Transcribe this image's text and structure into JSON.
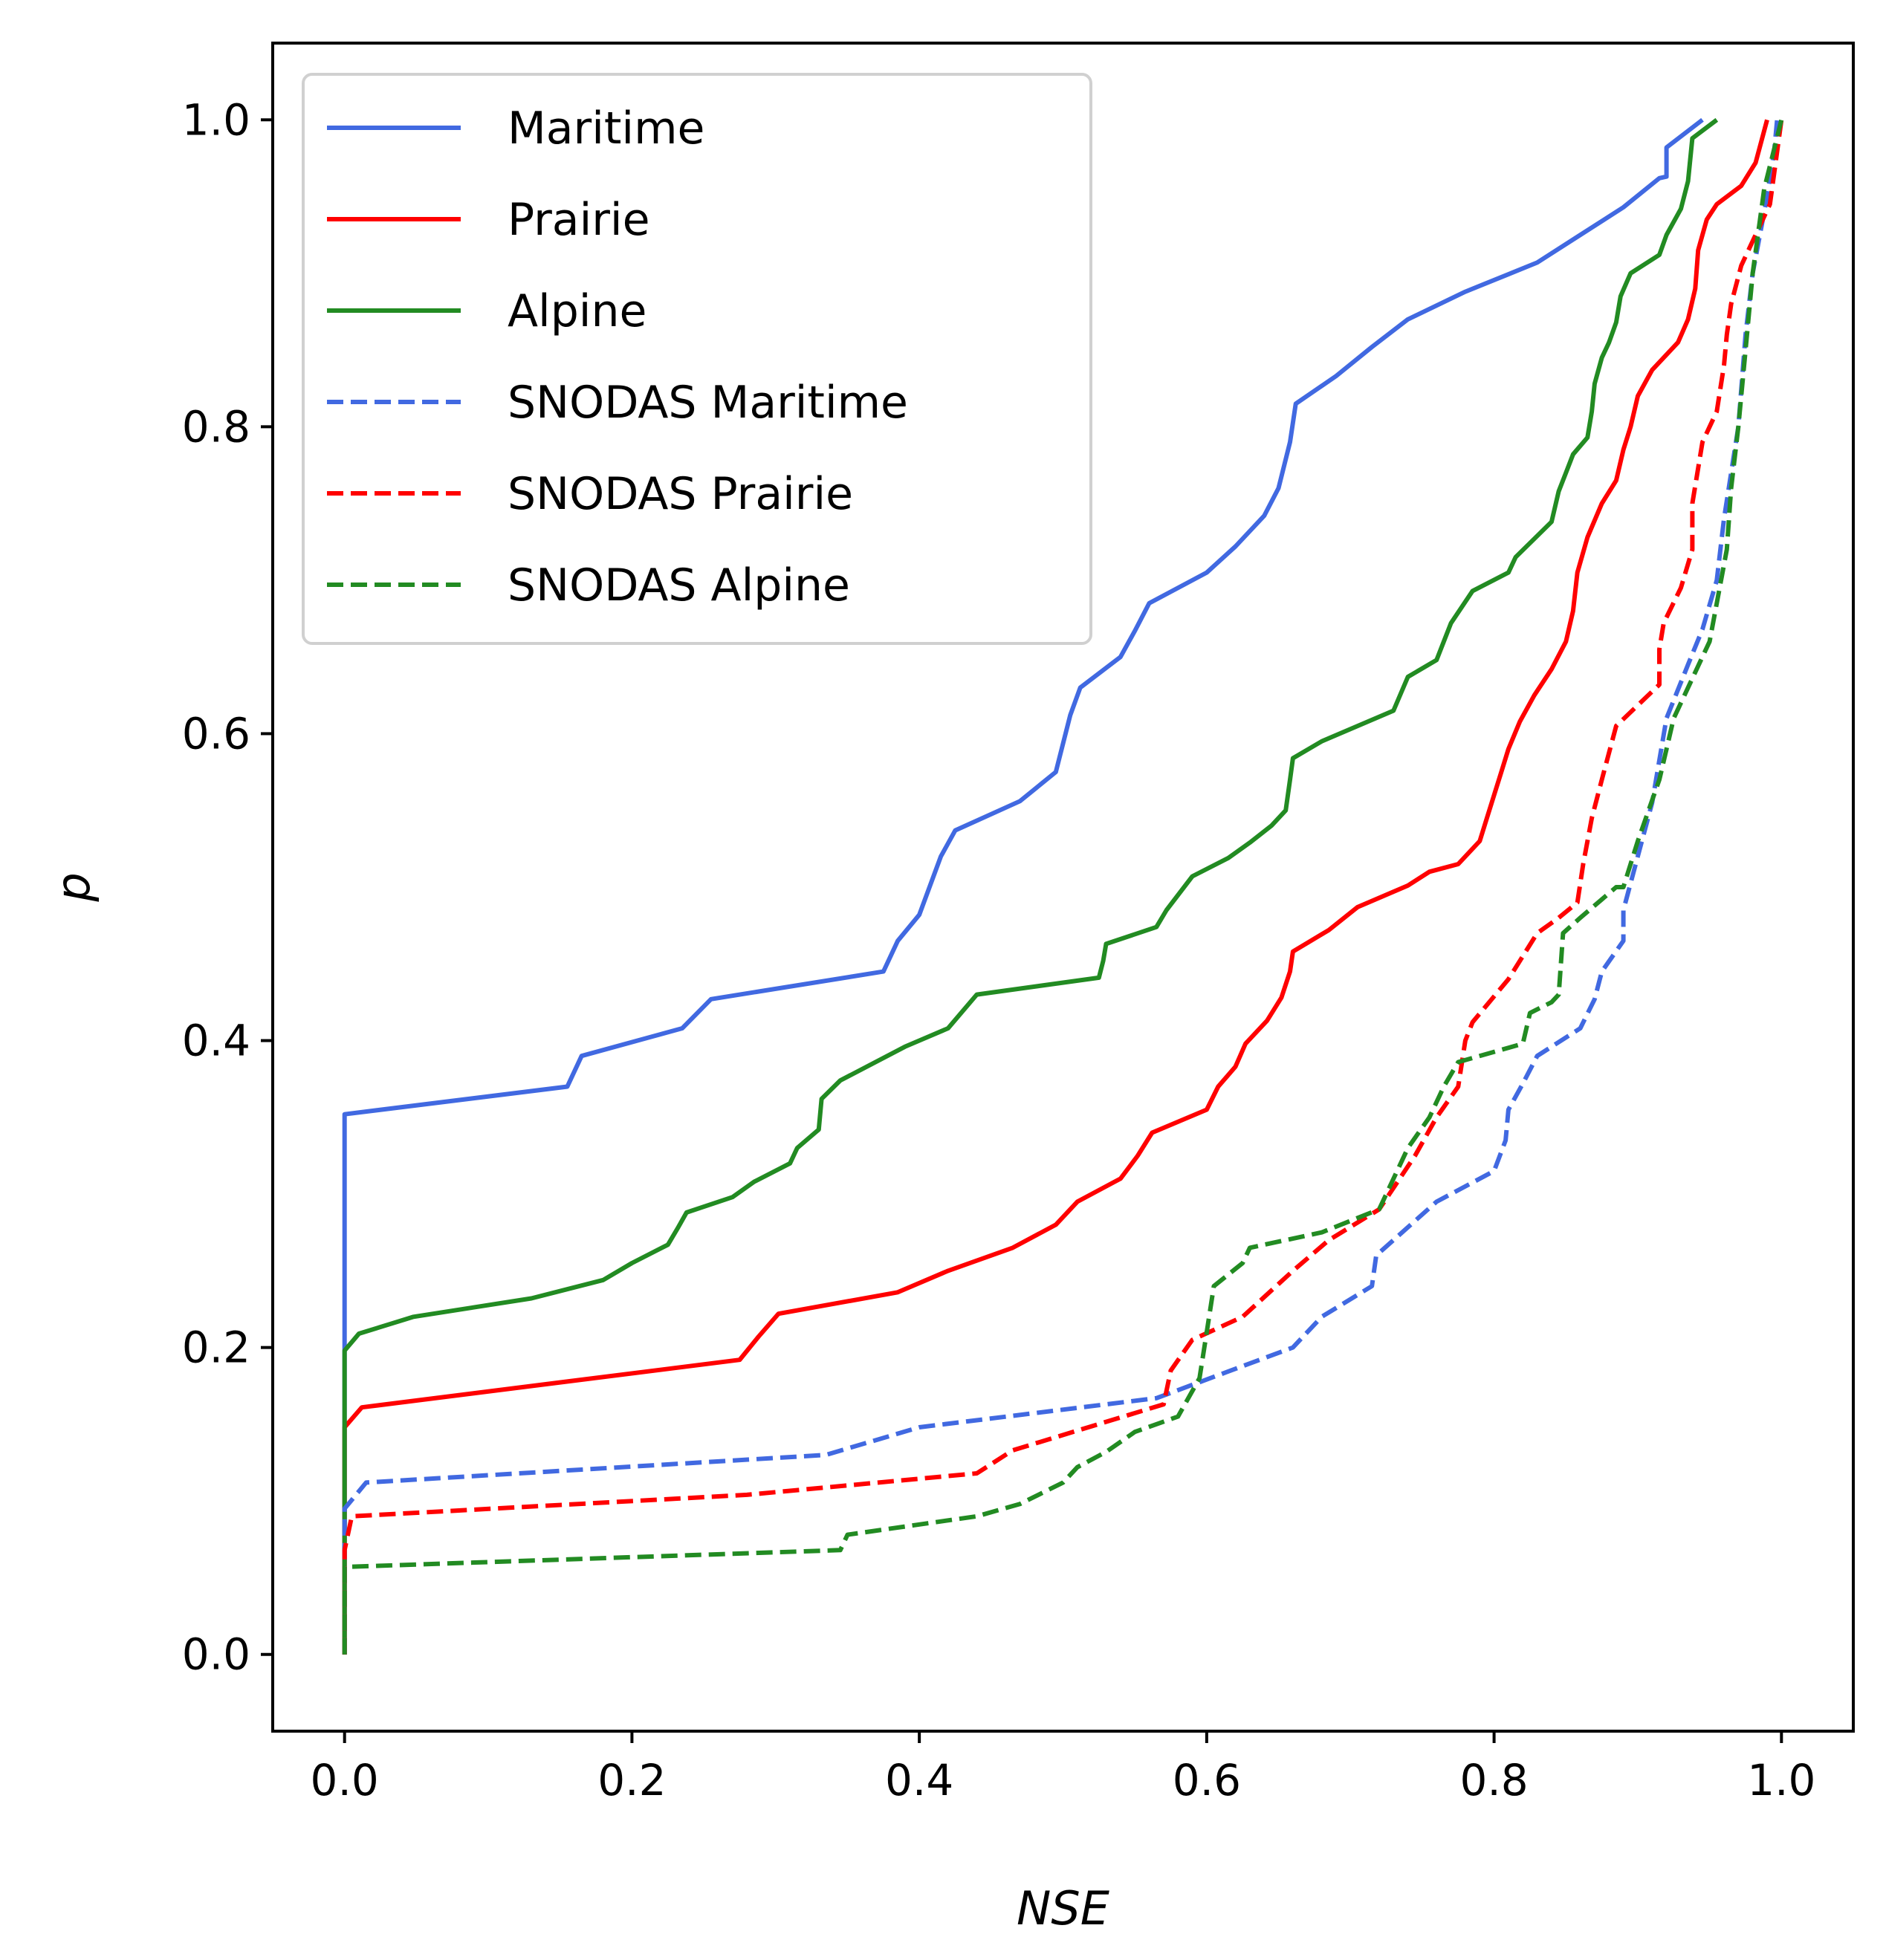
{
  "chart_data": {
    "type": "line",
    "xlabel": "NSE",
    "ylabel": "p",
    "xlim": [
      -0.05,
      1.05
    ],
    "ylim": [
      -0.05,
      1.05
    ],
    "xticks": [
      "0.0",
      "0.2",
      "0.4",
      "0.6",
      "0.8",
      "1.0"
    ],
    "yticks": [
      "0.0",
      "0.2",
      "0.4",
      "0.6",
      "0.8",
      "1.0"
    ],
    "grid": false,
    "legend_position": "top-left",
    "series": [
      {
        "name": "Maritime",
        "color": "#4169e1",
        "style": "solid",
        "points": [
          [
            0.0,
            0.0
          ],
          [
            0.0,
            0.352
          ],
          [
            0.155,
            0.37
          ],
          [
            0.165,
            0.39
          ],
          [
            0.235,
            0.408
          ],
          [
            0.255,
            0.427
          ],
          [
            0.375,
            0.445
          ],
          [
            0.385,
            0.465
          ],
          [
            0.4,
            0.482
          ],
          [
            0.415,
            0.52
          ],
          [
            0.425,
            0.537
          ],
          [
            0.47,
            0.556
          ],
          [
            0.495,
            0.575
          ],
          [
            0.505,
            0.612
          ],
          [
            0.512,
            0.63
          ],
          [
            0.54,
            0.65
          ],
          [
            0.55,
            0.667
          ],
          [
            0.56,
            0.685
          ],
          [
            0.6,
            0.705
          ],
          [
            0.62,
            0.722
          ],
          [
            0.64,
            0.742
          ],
          [
            0.65,
            0.76
          ],
          [
            0.658,
            0.79
          ],
          [
            0.662,
            0.815
          ],
          [
            0.69,
            0.833
          ],
          [
            0.715,
            0.852
          ],
          [
            0.74,
            0.87
          ],
          [
            0.78,
            0.888
          ],
          [
            0.83,
            0.907
          ],
          [
            0.86,
            0.925
          ],
          [
            0.89,
            0.943
          ],
          [
            0.915,
            0.962
          ],
          [
            0.92,
            0.963
          ],
          [
            0.92,
            0.982
          ],
          [
            0.945,
            1.0
          ]
        ]
      },
      {
        "name": "Prairie",
        "color": "#ff0000",
        "style": "solid",
        "points": [
          [
            0.0,
            0.0
          ],
          [
            0.0,
            0.148
          ],
          [
            0.012,
            0.161
          ],
          [
            0.275,
            0.192
          ],
          [
            0.288,
            0.207
          ],
          [
            0.302,
            0.222
          ],
          [
            0.385,
            0.236
          ],
          [
            0.42,
            0.25
          ],
          [
            0.465,
            0.265
          ],
          [
            0.495,
            0.28
          ],
          [
            0.51,
            0.295
          ],
          [
            0.54,
            0.31
          ],
          [
            0.552,
            0.325
          ],
          [
            0.562,
            0.34
          ],
          [
            0.6,
            0.355
          ],
          [
            0.608,
            0.37
          ],
          [
            0.62,
            0.383
          ],
          [
            0.627,
            0.398
          ],
          [
            0.642,
            0.413
          ],
          [
            0.652,
            0.428
          ],
          [
            0.658,
            0.445
          ],
          [
            0.66,
            0.458
          ],
          [
            0.685,
            0.472
          ],
          [
            0.705,
            0.487
          ],
          [
            0.74,
            0.501
          ],
          [
            0.755,
            0.51
          ],
          [
            0.775,
            0.515
          ],
          [
            0.79,
            0.53
          ],
          [
            0.795,
            0.545
          ],
          [
            0.8,
            0.56
          ],
          [
            0.805,
            0.575
          ],
          [
            0.81,
            0.59
          ],
          [
            0.818,
            0.608
          ],
          [
            0.828,
            0.625
          ],
          [
            0.84,
            0.642
          ],
          [
            0.85,
            0.66
          ],
          [
            0.855,
            0.68
          ],
          [
            0.858,
            0.705
          ],
          [
            0.865,
            0.728
          ],
          [
            0.875,
            0.75
          ],
          [
            0.885,
            0.765
          ],
          [
            0.89,
            0.785
          ],
          [
            0.895,
            0.8
          ],
          [
            0.9,
            0.82
          ],
          [
            0.91,
            0.837
          ],
          [
            0.928,
            0.855
          ],
          [
            0.935,
            0.87
          ],
          [
            0.94,
            0.89
          ],
          [
            0.942,
            0.915
          ],
          [
            0.948,
            0.935
          ],
          [
            0.955,
            0.945
          ],
          [
            0.972,
            0.957
          ],
          [
            0.982,
            0.972
          ],
          [
            0.99,
            1.0
          ]
        ]
      },
      {
        "name": "Alpine",
        "color": "#228b22",
        "style": "solid",
        "points": [
          [
            0.0,
            0.0
          ],
          [
            0.0,
            0.198
          ],
          [
            0.01,
            0.209
          ],
          [
            0.048,
            0.22
          ],
          [
            0.13,
            0.232
          ],
          [
            0.18,
            0.244
          ],
          [
            0.2,
            0.255
          ],
          [
            0.225,
            0.267
          ],
          [
            0.232,
            0.278
          ],
          [
            0.238,
            0.288
          ],
          [
            0.27,
            0.298
          ],
          [
            0.285,
            0.308
          ],
          [
            0.31,
            0.32
          ],
          [
            0.315,
            0.33
          ],
          [
            0.33,
            0.342
          ],
          [
            0.332,
            0.362
          ],
          [
            0.345,
            0.374
          ],
          [
            0.39,
            0.396
          ],
          [
            0.42,
            0.408
          ],
          [
            0.44,
            0.43
          ],
          [
            0.525,
            0.441
          ],
          [
            0.528,
            0.452
          ],
          [
            0.53,
            0.463
          ],
          [
            0.565,
            0.474
          ],
          [
            0.572,
            0.485
          ],
          [
            0.59,
            0.507
          ],
          [
            0.615,
            0.519
          ],
          [
            0.63,
            0.529
          ],
          [
            0.645,
            0.54
          ],
          [
            0.655,
            0.55
          ],
          [
            0.658,
            0.57
          ],
          [
            0.66,
            0.584
          ],
          [
            0.68,
            0.595
          ],
          [
            0.73,
            0.615
          ],
          [
            0.74,
            0.637
          ],
          [
            0.76,
            0.648
          ],
          [
            0.765,
            0.66
          ],
          [
            0.77,
            0.672
          ],
          [
            0.785,
            0.693
          ],
          [
            0.81,
            0.705
          ],
          [
            0.815,
            0.715
          ],
          [
            0.84,
            0.738
          ],
          [
            0.845,
            0.758
          ],
          [
            0.85,
            0.77
          ],
          [
            0.855,
            0.782
          ],
          [
            0.865,
            0.793
          ],
          [
            0.868,
            0.81
          ],
          [
            0.87,
            0.828
          ],
          [
            0.875,
            0.845
          ],
          [
            0.88,
            0.855
          ],
          [
            0.885,
            0.868
          ],
          [
            0.888,
            0.885
          ],
          [
            0.895,
            0.9
          ],
          [
            0.915,
            0.912
          ],
          [
            0.92,
            0.925
          ],
          [
            0.93,
            0.942
          ],
          [
            0.935,
            0.96
          ],
          [
            0.938,
            0.988
          ],
          [
            0.955,
            1.0
          ]
        ]
      },
      {
        "name": "SNODAS Maritime",
        "color": "#4169e1",
        "style": "dashed",
        "points": [
          [
            0.0,
            0.0
          ],
          [
            0.0,
            0.095
          ],
          [
            0.015,
            0.112
          ],
          [
            0.335,
            0.13
          ],
          [
            0.4,
            0.148
          ],
          [
            0.565,
            0.167
          ],
          [
            0.66,
            0.2
          ],
          [
            0.68,
            0.22
          ],
          [
            0.715,
            0.24
          ],
          [
            0.718,
            0.26
          ],
          [
            0.76,
            0.295
          ],
          [
            0.8,
            0.315
          ],
          [
            0.808,
            0.335
          ],
          [
            0.81,
            0.355
          ],
          [
            0.82,
            0.372
          ],
          [
            0.83,
            0.39
          ],
          [
            0.86,
            0.408
          ],
          [
            0.87,
            0.427
          ],
          [
            0.875,
            0.445
          ],
          [
            0.89,
            0.465
          ],
          [
            0.89,
            0.485
          ],
          [
            0.91,
            0.555
          ],
          [
            0.92,
            0.61
          ],
          [
            0.935,
            0.645
          ],
          [
            0.945,
            0.668
          ],
          [
            0.955,
            0.7
          ],
          [
            0.96,
            0.74
          ],
          [
            0.97,
            0.8
          ],
          [
            0.975,
            0.86
          ],
          [
            0.98,
            0.9
          ],
          [
            0.99,
            0.95
          ],
          [
            0.995,
            0.98
          ],
          [
            0.997,
            1.0
          ]
        ]
      },
      {
        "name": "SNODAS Prairie",
        "color": "#ff0000",
        "style": "dashed",
        "points": [
          [
            0.0,
            0.0
          ],
          [
            0.0,
            0.068
          ],
          [
            0.005,
            0.09
          ],
          [
            0.28,
            0.104
          ],
          [
            0.44,
            0.118
          ],
          [
            0.465,
            0.133
          ],
          [
            0.57,
            0.163
          ],
          [
            0.575,
            0.185
          ],
          [
            0.59,
            0.205
          ],
          [
            0.625,
            0.22
          ],
          [
            0.66,
            0.25
          ],
          [
            0.685,
            0.27
          ],
          [
            0.72,
            0.29
          ],
          [
            0.745,
            0.325
          ],
          [
            0.76,
            0.35
          ],
          [
            0.775,
            0.37
          ],
          [
            0.78,
            0.4
          ],
          [
            0.785,
            0.412
          ],
          [
            0.81,
            0.44
          ],
          [
            0.83,
            0.47
          ],
          [
            0.845,
            0.48
          ],
          [
            0.858,
            0.49
          ],
          [
            0.862,
            0.515
          ],
          [
            0.868,
            0.545
          ],
          [
            0.875,
            0.57
          ],
          [
            0.885,
            0.605
          ],
          [
            0.915,
            0.632
          ],
          [
            0.915,
            0.655
          ],
          [
            0.918,
            0.672
          ],
          [
            0.93,
            0.695
          ],
          [
            0.938,
            0.72
          ],
          [
            0.938,
            0.75
          ],
          [
            0.945,
            0.79
          ],
          [
            0.955,
            0.81
          ],
          [
            0.96,
            0.84
          ],
          [
            0.962,
            0.86
          ],
          [
            0.965,
            0.88
          ],
          [
            0.972,
            0.905
          ],
          [
            0.982,
            0.925
          ],
          [
            0.992,
            0.945
          ],
          [
            1.0,
            1.0
          ]
        ]
      },
      {
        "name": "SNODAS Alpine",
        "color": "#228b22",
        "style": "dashed",
        "points": [
          [
            0.0,
            0.0
          ],
          [
            0.0,
            0.057
          ],
          [
            0.345,
            0.068
          ],
          [
            0.35,
            0.078
          ],
          [
            0.44,
            0.09
          ],
          [
            0.47,
            0.098
          ],
          [
            0.5,
            0.112
          ],
          [
            0.51,
            0.122
          ],
          [
            0.53,
            0.132
          ],
          [
            0.55,
            0.145
          ],
          [
            0.58,
            0.155
          ],
          [
            0.595,
            0.18
          ],
          [
            0.6,
            0.21
          ],
          [
            0.605,
            0.24
          ],
          [
            0.625,
            0.255
          ],
          [
            0.63,
            0.265
          ],
          [
            0.68,
            0.275
          ],
          [
            0.72,
            0.29
          ],
          [
            0.74,
            0.33
          ],
          [
            0.755,
            0.35
          ],
          [
            0.765,
            0.37
          ],
          [
            0.775,
            0.386
          ],
          [
            0.82,
            0.398
          ],
          [
            0.825,
            0.418
          ],
          [
            0.84,
            0.425
          ],
          [
            0.845,
            0.43
          ],
          [
            0.848,
            0.47
          ],
          [
            0.86,
            0.48
          ],
          [
            0.885,
            0.5
          ],
          [
            0.89,
            0.5
          ],
          [
            0.9,
            0.53
          ],
          [
            0.915,
            0.57
          ],
          [
            0.925,
            0.61
          ],
          [
            0.95,
            0.66
          ],
          [
            0.962,
            0.72
          ],
          [
            0.965,
            0.76
          ],
          [
            0.97,
            0.8
          ],
          [
            0.975,
            0.85
          ],
          [
            0.98,
            0.9
          ],
          [
            0.988,
            0.955
          ],
          [
            1.0,
            1.0
          ]
        ]
      }
    ]
  }
}
